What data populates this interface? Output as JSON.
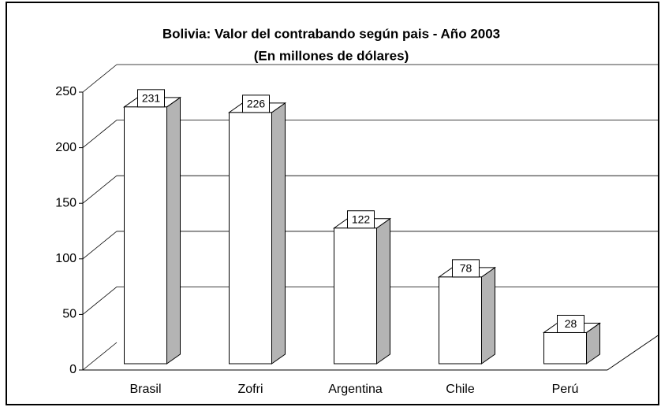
{
  "chart_data": {
    "type": "bar3d",
    "title": "Bolivia: Valor del contrabando según pais - Año 2003",
    "subtitle": "(En millones de dólares)",
    "categories": [
      "Brasil",
      "Zofri",
      "Argentina",
      "Chile",
      "Perú"
    ],
    "values": [
      231,
      226,
      122,
      78,
      28
    ],
    "color": "#ffffff",
    "side_color": "#b4b4b4",
    "ylim": [
      0,
      250
    ],
    "yticks": [
      0,
      50,
      100,
      150,
      200,
      250
    ],
    "grid": true
  }
}
